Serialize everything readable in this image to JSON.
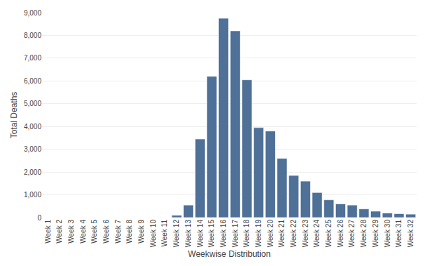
{
  "chart_data": {
    "type": "bar",
    "categories": [
      "Week 1",
      "Week 2",
      "Week 3",
      "Week 4",
      "Week 5",
      "Week 6",
      "Week 7",
      "Week 8",
      "Week 9",
      "Week 10",
      "Week 11",
      "Week 12",
      "Week 13",
      "Week 14",
      "Week 15",
      "Week 16",
      "Week 17",
      "Week 18",
      "Week 19",
      "Week 20",
      "Week 21",
      "Week 22",
      "Week 23",
      "Week 24",
      "Week 25",
      "Week 26",
      "Week 27",
      "Week 28",
      "Week 29",
      "Week 30",
      "Week 31",
      "Week 32"
    ],
    "values": [
      0,
      0,
      0,
      0,
      0,
      0,
      0,
      0,
      0,
      0,
      0,
      100,
      550,
      3450,
      6200,
      8750,
      8200,
      6050,
      3950,
      3800,
      2600,
      1850,
      1600,
      1100,
      780,
      600,
      550,
      380,
      280,
      200,
      170,
      150
    ],
    "color": "#4f7097",
    "xlabel": "Weekwise Distribution",
    "ylabel": "Total Deaths",
    "ylim": [
      0,
      9000
    ],
    "yticks": [
      0,
      {
        "value": 1000,
        "label": "1,000"
      },
      {
        "value": 2000,
        "label": "2,000"
      },
      {
        "value": 3000,
        "label": "3,000"
      },
      {
        "value": 4000,
        "label": "4,000"
      },
      {
        "value": 5000,
        "label": "5,000"
      },
      {
        "value": 6000,
        "label": "6,000"
      },
      {
        "value": 7000,
        "label": "7,000"
      },
      {
        "value": 8000,
        "label": "8,000"
      },
      {
        "value": 9000,
        "label": "9,000"
      }
    ],
    "grid": true
  }
}
